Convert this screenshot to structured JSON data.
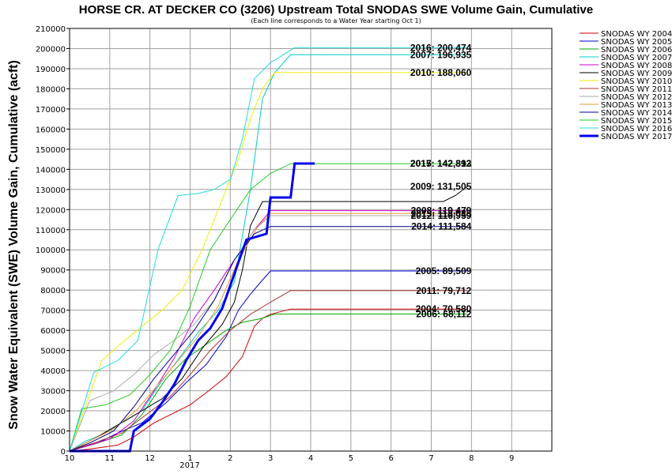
{
  "chart_data": {
    "type": "line",
    "title": "HORSE CR. AT DECKER CO (3206) Upstream Total SNODAS SWE Volume Gain, Cumulative",
    "subtitle": "(Each line corresponds to a Water Year starting Oct 1)",
    "ylabel": "Snow Water Equivalent (SWE) Volume Gain, Cumulative (acft)",
    "xlabel": "",
    "year_label": "2017",
    "x_ticks": [
      "10",
      "11",
      "12",
      "1",
      "2",
      "3",
      "4",
      "5",
      "6",
      "7",
      "8",
      "9"
    ],
    "x_unit": "months since Oct 1",
    "xlim": [
      0,
      12
    ],
    "ylim": [
      0,
      210000
    ],
    "y_ticks": [
      0,
      10000,
      20000,
      30000,
      40000,
      50000,
      60000,
      70000,
      80000,
      90000,
      100000,
      110000,
      120000,
      130000,
      140000,
      150000,
      160000,
      170000,
      180000,
      190000,
      200000,
      210000
    ],
    "grid": true,
    "legend_position": "right",
    "series": [
      {
        "name": "SNODAS WY 2004",
        "color": "#cc0000",
        "width": 1,
        "end_label": "2004: 70,580",
        "x": [
          0,
          0.5,
          1.2,
          1.6,
          2.1,
          2.6,
          3.0,
          3.4,
          3.9,
          4.3,
          4.6,
          4.8,
          5.0,
          5.5,
          9.9
        ],
        "y": [
          0,
          1000,
          3000,
          7000,
          14000,
          19000,
          23000,
          29000,
          37000,
          47000,
          62000,
          66000,
          68000,
          70580,
          70580
        ]
      },
      {
        "name": "SNODAS WY 2005",
        "color": "#0000cc",
        "width": 1,
        "end_label": "2005: 89,509",
        "x": [
          0,
          0.7,
          1.2,
          1.8,
          2.4,
          2.9,
          3.4,
          3.9,
          4.2,
          4.5,
          4.8,
          5.0,
          9.9
        ],
        "y": [
          0,
          4000,
          9000,
          14000,
          24000,
          34000,
          43000,
          57000,
          70000,
          78000,
          85000,
          89509,
          89509
        ]
      },
      {
        "name": "SNODAS WY 2006",
        "color": "#00aa00",
        "width": 1,
        "end_label": "2006: 68,112",
        "x": [
          0,
          0.3,
          0.7,
          1.3,
          1.8,
          2.4,
          2.9,
          3.4,
          3.9,
          4.3,
          4.8,
          5.1,
          9.9
        ],
        "y": [
          0,
          2000,
          4000,
          8000,
          18000,
          36000,
          46000,
          53000,
          60000,
          64000,
          66000,
          68112,
          68112
        ]
      },
      {
        "name": "SNODAS WY 2007",
        "color": "#00cccc",
        "width": 1,
        "end_label": "2007: 196,935",
        "x": [
          0,
          0.4,
          0.8,
          1.3,
          1.8,
          2.3,
          2.8,
          3.2,
          3.7,
          4.1,
          4.5,
          4.8,
          5.1,
          5.5,
          9.9
        ],
        "y": [
          0,
          5000,
          8000,
          14000,
          20000,
          35000,
          48000,
          59000,
          70000,
          84000,
          130000,
          175000,
          188000,
          196935,
          196935
        ]
      },
      {
        "name": "SNODAS WY 2008",
        "color": "#cc00cc",
        "width": 1,
        "end_label": "2008: 119,479",
        "x": [
          0,
          0.5,
          1.0,
          1.6,
          2.1,
          2.6,
          3.1,
          3.6,
          4.1,
          4.6,
          5.0,
          9.9
        ],
        "y": [
          0,
          3000,
          6000,
          15000,
          30000,
          46000,
          66000,
          80000,
          95000,
          110000,
          119479,
          119479
        ]
      },
      {
        "name": "SNODAS WY 2009",
        "color": "#000000",
        "width": 1,
        "end_label": "2009: 131,505",
        "x": [
          0,
          0.6,
          1.2,
          1.8,
          2.3,
          2.8,
          3.3,
          3.8,
          4.1,
          4.3,
          4.5,
          4.8,
          9.3,
          9.6,
          9.9
        ],
        "y": [
          0,
          6000,
          13000,
          20000,
          26000,
          36000,
          51000,
          63000,
          74000,
          90000,
          112000,
          124000,
          124000,
          127000,
          131505
        ]
      },
      {
        "name": "SNODAS WY 2010",
        "color": "#eeee00",
        "width": 1,
        "end_label": "2010: 188,060",
        "x": [
          0,
          0.8,
          1.2,
          1.8,
          2.3,
          2.8,
          3.3,
          3.8,
          4.2,
          4.5,
          4.8,
          5.1,
          9.9
        ],
        "y": [
          0,
          45000,
          52000,
          62000,
          70000,
          80000,
          100000,
          125000,
          145000,
          165000,
          180000,
          188060,
          188060
        ]
      },
      {
        "name": "SNODAS WY 2011",
        "color": "#aa3333",
        "width": 1,
        "end_label": "2011: 79,712",
        "x": [
          0,
          0.6,
          1.3,
          1.9,
          2.5,
          3.0,
          3.5,
          4.0,
          4.5,
          5.0,
          5.5,
          9.9
        ],
        "y": [
          0,
          4000,
          9000,
          18000,
          27000,
          38000,
          50000,
          60000,
          68000,
          74000,
          79712,
          79712
        ]
      },
      {
        "name": "SNODAS WY 2012",
        "color": "#aaaaaa",
        "width": 1,
        "end_label": "2012: 116,959",
        "x": [
          0,
          0.5,
          1.1,
          1.6,
          2.1,
          2.6,
          3.1,
          3.6,
          4.1,
          4.6,
          5.0,
          9.9
        ],
        "y": [
          0,
          25000,
          30000,
          38000,
          48000,
          55000,
          63000,
          75000,
          95000,
          110000,
          116959,
          116959
        ]
      },
      {
        "name": "SNODAS WY 2013",
        "color": "#ee9933",
        "width": 1,
        "end_label": "2013: 118,033",
        "x": [
          0,
          0.5,
          1.1,
          1.7,
          2.2,
          2.7,
          3.2,
          3.7,
          4.2,
          4.7,
          5.0,
          9.9
        ],
        "y": [
          0,
          5000,
          11000,
          21000,
          33000,
          45000,
          57000,
          72000,
          95000,
          112000,
          118033,
          118033
        ]
      },
      {
        "name": "SNODAS WY 2014",
        "color": "#000088",
        "width": 1,
        "end_label": "2014: 111,584",
        "x": [
          0,
          0.5,
          1.1,
          1.6,
          2.1,
          2.6,
          3.1,
          3.6,
          4.1,
          4.6,
          5.0,
          9.9
        ],
        "y": [
          0,
          4000,
          10000,
          22000,
          36000,
          48000,
          60000,
          75000,
          95000,
          108000,
          111584,
          111584
        ]
      },
      {
        "name": "SNODAS WY 2015",
        "color": "#22cc22",
        "width": 1,
        "end_label": "2015: 142,812",
        "x": [
          0,
          0.3,
          0.9,
          1.5,
          2.0,
          2.5,
          3.0,
          3.5,
          4.0,
          4.5,
          5.0,
          5.5,
          9.9
        ],
        "y": [
          0,
          21000,
          23000,
          28000,
          38000,
          50000,
          72000,
          100000,
          115000,
          130000,
          138000,
          142812,
          142812
        ]
      },
      {
        "name": "SNODAS WY 2016",
        "color": "#22dddd",
        "width": 1,
        "end_label": "2016: 200,474",
        "x": [
          0,
          0.6,
          1.2,
          1.7,
          2.2,
          2.7,
          3.2,
          3.6,
          4.0,
          4.3,
          4.6,
          5.0,
          5.6,
          9.9
        ],
        "y": [
          0,
          39000,
          45000,
          55000,
          100000,
          127000,
          128000,
          130000,
          135000,
          155000,
          185000,
          193000,
          200474,
          200474
        ]
      },
      {
        "name": "SNODAS WY 2017",
        "color": "#0000ee",
        "width": 3,
        "end_label": "2017: 142,893",
        "x": [
          0,
          1.5,
          1.6,
          2.0,
          2.3,
          2.6,
          2.9,
          3.2,
          3.5,
          3.8,
          4.1,
          4.4,
          4.9,
          5.0,
          5.5,
          5.6,
          6.1
        ],
        "y": [
          0,
          0,
          10000,
          16000,
          24000,
          33000,
          45000,
          55000,
          61000,
          71000,
          88000,
          105000,
          108000,
          126000,
          126000,
          142893,
          142893
        ]
      }
    ]
  }
}
